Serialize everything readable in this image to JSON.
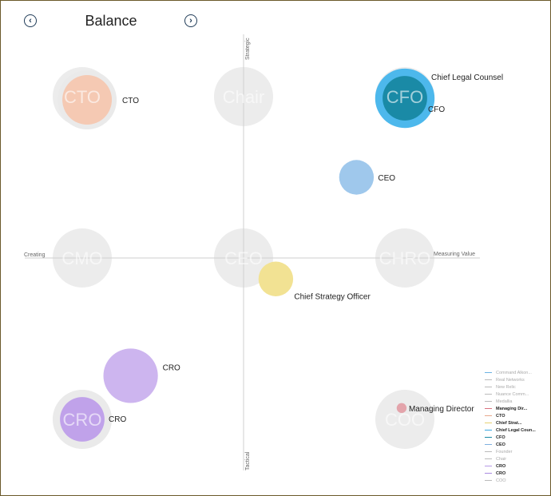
{
  "header": {
    "title": "Balance",
    "prev_icon": "chevron-left-icon",
    "next_icon": "chevron-right-icon"
  },
  "chart_data": {
    "type": "scatter",
    "title": "Balance",
    "axes": {
      "x": {
        "min": -1,
        "max": 1,
        "left_label": "Creating",
        "right_label": "Measuring Value"
      },
      "y": {
        "min": -1,
        "max": 1,
        "top_label": "Strategic",
        "bottom_label": "Tactical"
      }
    },
    "reference_positions": [
      {
        "name": "CTO",
        "x": -1,
        "y": 1
      },
      {
        "name": "Chair",
        "x": 0,
        "y": 1
      },
      {
        "name": "CFO",
        "x": 1,
        "y": 1
      },
      {
        "name": "CMO",
        "x": -1,
        "y": 0
      },
      {
        "name": "CEO",
        "x": 0,
        "y": 0
      },
      {
        "name": "CHRO",
        "x": 1,
        "y": 0
      },
      {
        "name": "CRO",
        "x": -1,
        "y": -1
      },
      {
        "name": "COO",
        "x": 1,
        "y": -1
      }
    ],
    "points": [
      {
        "label": "CTO",
        "x": -0.97,
        "y": 0.98,
        "size": 1.0,
        "color": "#f5c9b3",
        "ring": "#eaeaea"
      },
      {
        "label": "Chief Legal Counsel",
        "x": 1.0,
        "y": 0.99,
        "size": 1.2,
        "color": "#4db8ec"
      },
      {
        "label": "CFO",
        "x": 1.0,
        "y": 0.99,
        "size": 0.9,
        "color": "#1a8aa6"
      },
      {
        "label": "CEO",
        "x": 0.7,
        "y": 0.5,
        "size": 0.7,
        "color": "#9fc8ec"
      },
      {
        "label": "Chief Strategy Officer",
        "x": 0.2,
        "y": -0.13,
        "size": 0.7,
        "color": "#f2e293"
      },
      {
        "label": "CRO",
        "x": -0.7,
        "y": -0.73,
        "size": 1.1,
        "color": "#cdb5ef"
      },
      {
        "label": "CRO",
        "x": -1.0,
        "y": -1.0,
        "size": 0.9,
        "color": "#c0a2ea",
        "ring": "#eaeaea"
      },
      {
        "label": "Managing Director",
        "x": 0.98,
        "y": -0.93,
        "size": 0.2,
        "color": "#e3a4ab"
      }
    ]
  },
  "legend": [
    {
      "label": "Command Alkon...",
      "color": "#6bb3e3",
      "dim": true
    },
    {
      "label": "Real Networks",
      "color": "#bbbbbb",
      "dim": true
    },
    {
      "label": "New Relic",
      "color": "#bbbbbb",
      "dim": true
    },
    {
      "label": "Nuance Comm...",
      "color": "#bbbbbb",
      "dim": true
    },
    {
      "label": "Medallia",
      "color": "#bbbbbb",
      "dim": true
    },
    {
      "label": "Managing Dir...",
      "color": "#d9717e",
      "dim": false
    },
    {
      "label": "CTO",
      "color": "#e9a98c",
      "dim": false
    },
    {
      "label": "Chief Strat...",
      "color": "#e6d174",
      "dim": false
    },
    {
      "label": "Chief Legal Coun...",
      "color": "#3aa7e0",
      "dim": false
    },
    {
      "label": "CFO",
      "color": "#1a8aa6",
      "dim": false
    },
    {
      "label": "CEO",
      "color": "#7fb1e0",
      "dim": false
    },
    {
      "label": "Founder",
      "color": "#bbbbbb",
      "dim": true
    },
    {
      "label": "Chair",
      "color": "#bbbbbb",
      "dim": true
    },
    {
      "label": "CRO",
      "color": "#b69ae6",
      "dim": false
    },
    {
      "label": "CRO",
      "color": "#a98ae0",
      "dim": false
    },
    {
      "label": "COO",
      "color": "#bbbbbb",
      "dim": true
    }
  ]
}
